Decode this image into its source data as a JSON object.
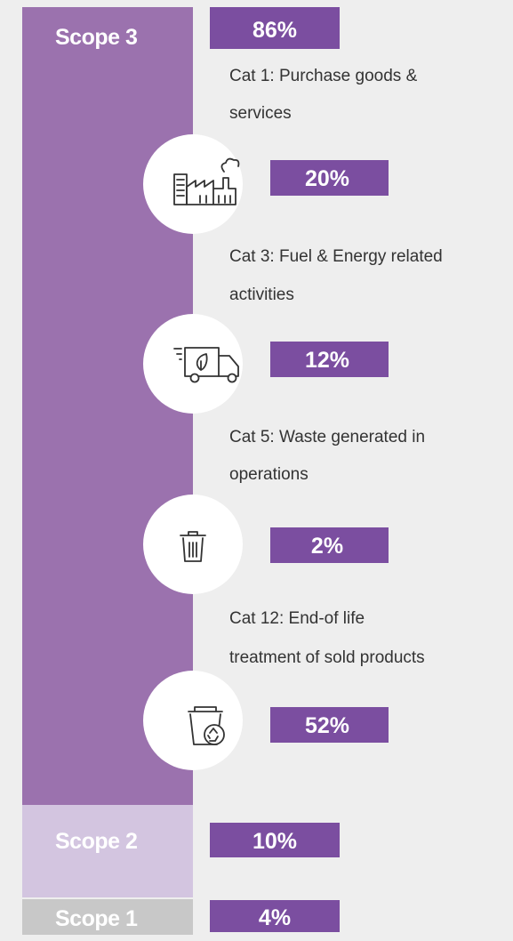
{
  "scope3": {
    "label": "Scope 3",
    "value": "86%",
    "categories": [
      {
        "lines": [
          "Cat 1: Purchase goods &",
          "services"
        ],
        "value": "20%"
      },
      {
        "lines": [
          "Cat 3: Fuel & Energy related",
          "activities"
        ],
        "value": "12%"
      },
      {
        "lines": [
          "Cat 5: Waste generated in",
          "operations"
        ],
        "value": "2%"
      },
      {
        "lines": [
          "Cat 12: End-of life",
          "treatment of sold products"
        ],
        "value": "52%"
      }
    ]
  },
  "scope2": {
    "label": "Scope 2",
    "value": "10%"
  },
  "scope1": {
    "label": "Scope 1",
    "value": "4%"
  }
}
